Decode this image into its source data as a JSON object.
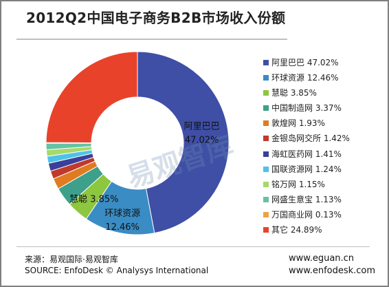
{
  "chart_data": {
    "type": "pie",
    "title": "2012Q2中国电子商务B2B市场收入份额",
    "slices": [
      {
        "name": "阿里巴巴",
        "value_label": "47.02%",
        "value": 47.02,
        "color": "#3f4fa6"
      },
      {
        "name": "环球资源",
        "value_label": "12.46%",
        "value": 12.46,
        "color": "#3a8cc4"
      },
      {
        "name": "慧聪",
        "value_label": "3.85%",
        "value": 3.85,
        "color": "#8dc63f"
      },
      {
        "name": "中国制造网",
        "value_label": "3.37%",
        "value": 3.37,
        "color": "#3ca08a"
      },
      {
        "name": "敦煌网",
        "value_label": "1.93%",
        "value": 1.93,
        "color": "#e07b22"
      },
      {
        "name": "金银岛网交所",
        "value_label": "1.42%",
        "value": 1.42,
        "color": "#c0392b"
      },
      {
        "name": "海虹医药网",
        "value_label": "1.41%",
        "value": 1.41,
        "color": "#3b3f99"
      },
      {
        "name": "国联资源网",
        "value_label": "1.24%",
        "value": 1.24,
        "color": "#4ec3e8"
      },
      {
        "name": "铭万网",
        "value_label": "1.15%",
        "value": 1.15,
        "color": "#a6d96a"
      },
      {
        "name": "网盛生意宝",
        "value_label": "1.13%",
        "value": 1.13,
        "color": "#66c2a5"
      },
      {
        "name": "万国商业网",
        "value_label": "0.13%",
        "value": 0.13,
        "color": "#f0a04b"
      },
      {
        "name": "其它",
        "value_label": "24.89%",
        "value": 24.89,
        "color": "#e8432a"
      }
    ],
    "data_labels": [
      {
        "index": 0,
        "name": "阿里巴巴",
        "value": "47.02%"
      },
      {
        "index": 1,
        "name": "环球资源",
        "value": "12.46%"
      },
      {
        "index": 2,
        "name": "慧聪",
        "value": "3.85%"
      }
    ],
    "legend_position": "right",
    "donut": true
  },
  "watermark": "易观智库",
  "footer": {
    "source_cn": "来源：易观国际·易观智库",
    "source_en": "SOURCE: EnfoDesk © Analysys International",
    "url1": "www.eguan.cn",
    "url2": "www.enfodesk.com"
  }
}
